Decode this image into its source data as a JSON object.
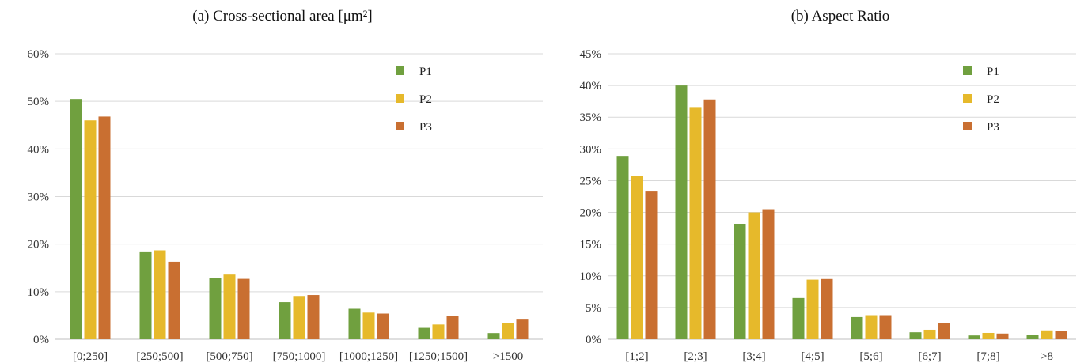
{
  "chart_data": [
    {
      "type": "bar",
      "title": "(a) Cross-sectional  area [μm²]",
      "categories": [
        "[0;250]",
        "[250;500]",
        "[500;750]",
        "[750;1000]",
        "[1000;1250]",
        "[1250;1500]",
        ">1500"
      ],
      "series": [
        {
          "name": "P1",
          "color": "#70a03f",
          "values": [
            50.5,
            18.3,
            12.9,
            7.8,
            6.4,
            2.4,
            1.3
          ]
        },
        {
          "name": "P2",
          "color": "#e6b92b",
          "values": [
            46.0,
            18.7,
            13.6,
            9.1,
            5.6,
            3.1,
            3.4
          ]
        },
        {
          "name": "P3",
          "color": "#c96f31",
          "values": [
            46.8,
            16.3,
            12.7,
            9.3,
            5.4,
            4.9,
            4.3
          ]
        }
      ],
      "ylim": [
        0,
        60
      ],
      "yticks": [
        "0%",
        "10%",
        "20%",
        "30%",
        "40%",
        "50%",
        "60%"
      ],
      "grid": true,
      "legend_position": "top-right"
    },
    {
      "type": "bar",
      "title": "(b) Aspect Ratio",
      "categories": [
        "[1;2]",
        "[2;3]",
        "[3;4]",
        "[4;5]",
        "[5;6]",
        "[6;7]",
        "[7;8]",
        ">8"
      ],
      "series": [
        {
          "name": "P1",
          "color": "#70a03f",
          "values": [
            28.9,
            40.0,
            18.2,
            6.5,
            3.5,
            1.1,
            0.6,
            0.7
          ]
        },
        {
          "name": "P2",
          "color": "#e6b92b",
          "values": [
            25.8,
            36.6,
            20.0,
            9.4,
            3.8,
            1.5,
            1.0,
            1.4
          ]
        },
        {
          "name": "P3",
          "color": "#c96f31",
          "values": [
            23.3,
            37.8,
            20.5,
            9.5,
            3.8,
            2.6,
            0.9,
            1.3
          ]
        }
      ],
      "ylim": [
        0,
        45
      ],
      "yticks": [
        "0%",
        "5%",
        "10%",
        "15%",
        "20%",
        "25%",
        "30%",
        "35%",
        "40%",
        "45%"
      ],
      "grid": true,
      "legend_position": "top-right"
    }
  ]
}
